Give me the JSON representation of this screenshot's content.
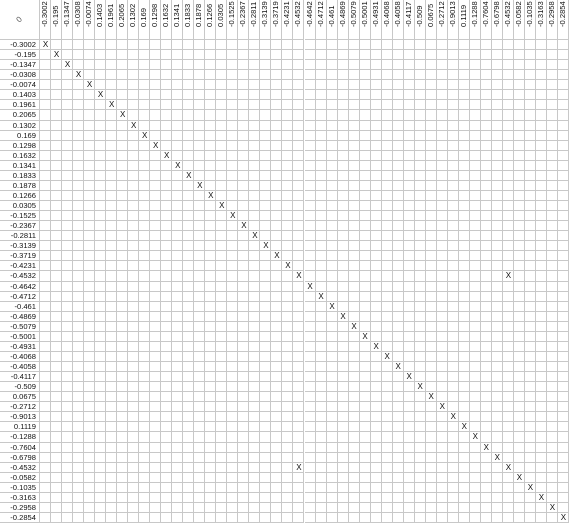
{
  "corner_label": "0",
  "labels": [
    "-0.3002",
    "-0.195",
    "-0.1347",
    "-0.0308",
    "-0.0074",
    "0.1403",
    "0.1961",
    "0.2065",
    "0.1302",
    "0.169",
    "0.1298",
    "0.1632",
    "0.1341",
    "0.1833",
    "0.1878",
    "0.1266",
    "0.0305",
    "-0.1525",
    "-0.2367",
    "-0.2811",
    "-0.3139",
    "-0.3719",
    "-0.4231",
    "-0.4532",
    "-0.4642",
    "-0.4712",
    "-0.461",
    "-0.4869",
    "-0.5079",
    "-0.5001",
    "-0.4931",
    "-0.4068",
    "-0.4058",
    "-0.4117",
    "-0.509",
    "0.0675",
    "-0.2712",
    "-0.9013",
    "0.1119",
    "-0.1288",
    "-0.7604",
    "-0.6798",
    "-0.4532",
    "-0.0582",
    "-0.1035",
    "-0.3163",
    "-0.2958",
    "-0.2854"
  ],
  "mark_symbol": "X",
  "marks": [
    [
      0,
      0
    ],
    [
      1,
      1
    ],
    [
      2,
      2
    ],
    [
      3,
      3
    ],
    [
      4,
      4
    ],
    [
      5,
      5
    ],
    [
      6,
      6
    ],
    [
      7,
      7
    ],
    [
      8,
      8
    ],
    [
      9,
      9
    ],
    [
      10,
      10
    ],
    [
      11,
      11
    ],
    [
      12,
      12
    ],
    [
      13,
      13
    ],
    [
      14,
      14
    ],
    [
      15,
      15
    ],
    [
      16,
      16
    ],
    [
      17,
      17
    ],
    [
      18,
      18
    ],
    [
      19,
      19
    ],
    [
      20,
      20
    ],
    [
      21,
      21
    ],
    [
      22,
      22
    ],
    [
      23,
      23
    ],
    [
      24,
      24
    ],
    [
      25,
      25
    ],
    [
      26,
      26
    ],
    [
      27,
      27
    ],
    [
      28,
      28
    ],
    [
      29,
      29
    ],
    [
      30,
      30
    ],
    [
      31,
      31
    ],
    [
      32,
      32
    ],
    [
      33,
      33
    ],
    [
      34,
      34
    ],
    [
      35,
      35
    ],
    [
      36,
      36
    ],
    [
      37,
      37
    ],
    [
      38,
      38
    ],
    [
      39,
      39
    ],
    [
      40,
      40
    ],
    [
      41,
      41
    ],
    [
      42,
      42
    ],
    [
      43,
      43
    ],
    [
      44,
      44
    ],
    [
      45,
      45
    ],
    [
      46,
      46
    ],
    [
      47,
      47
    ],
    [
      23,
      42
    ],
    [
      42,
      23
    ]
  ]
}
